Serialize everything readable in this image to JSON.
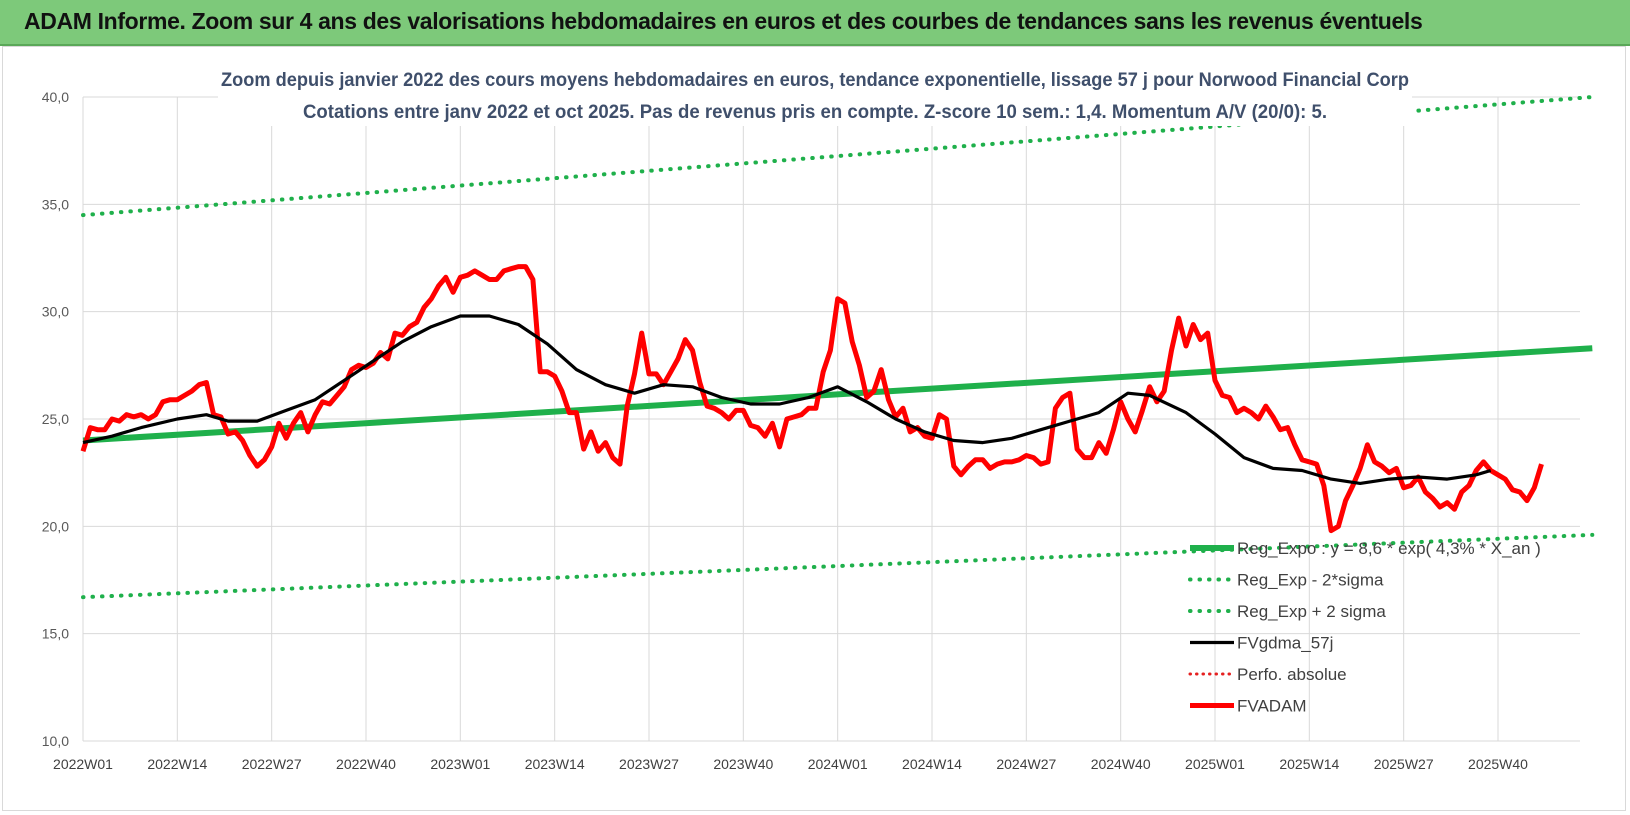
{
  "banner": {
    "title": "ADAM Informe. Zoom sur 4 ans des valorisations hebdomadaires en euros et des courbes de tendances sans les revenus éventuels"
  },
  "chart_data": {
    "type": "line",
    "title": "Zoom depuis janvier 2022 des cours moyens hebdomadaires en euros, tendance exponentielle, lissage 57 j pour Norwood Financial Corp",
    "subtitle": "Cotations entre janv 2022 et oct 2025. Pas de revenus pris en compte. Z-score 10 sem.: 1,4. Momentum A/V (20/0): 5.",
    "xlabel": "",
    "ylabel": "",
    "ylim": [
      10,
      40
    ],
    "y_ticks": [
      "10,0",
      "15,0",
      "20,0",
      "25,0",
      "30,0",
      "35,0",
      "40,0"
    ],
    "x_ticks": [
      "2022W01",
      "2022W14",
      "2022W27",
      "2022W40",
      "2023W01",
      "2023W14",
      "2023W27",
      "2023W40",
      "2024W01",
      "2024W14",
      "2024W27",
      "2024W40",
      "2025W01",
      "2025W14",
      "2025W27",
      "2025W40"
    ],
    "grid": "vertical and horizontal",
    "legend_position": "bottom-right",
    "colors": {
      "trend": "#1fb04b",
      "price": "#ff0000",
      "smooth": "#000000",
      "perf": "#e52020"
    },
    "series": [
      {
        "name": "Reg_Expo : y = 8,6 * exp( 4,3% * X_an )",
        "style": "solid-green",
        "points": [
          [
            0,
            24.0
          ],
          [
            208,
            28.3
          ]
        ]
      },
      {
        "name": "Reg_Exp - 2*sigma",
        "style": "dotted-green",
        "points": [
          [
            0,
            16.7
          ],
          [
            208,
            19.6
          ]
        ]
      },
      {
        "name": "Reg_Exp + 2 sigma",
        "style": "dotted-green",
        "points": [
          [
            0,
            34.5
          ],
          [
            208,
            40.0
          ]
        ]
      },
      {
        "name": "FVgdma_57j",
        "style": "solid-black",
        "points": [
          [
            0,
            23.9
          ],
          [
            4,
            24.2
          ],
          [
            8,
            24.6
          ],
          [
            13,
            25.0
          ],
          [
            17,
            25.2
          ],
          [
            20,
            24.9
          ],
          [
            24,
            24.9
          ],
          [
            28,
            25.4
          ],
          [
            32,
            25.9
          ],
          [
            36,
            26.8
          ],
          [
            40,
            27.7
          ],
          [
            44,
            28.6
          ],
          [
            48,
            29.3
          ],
          [
            52,
            29.8
          ],
          [
            56,
            29.8
          ],
          [
            60,
            29.4
          ],
          [
            64,
            28.5
          ],
          [
            68,
            27.3
          ],
          [
            72,
            26.6
          ],
          [
            76,
            26.2
          ],
          [
            80,
            26.6
          ],
          [
            84,
            26.5
          ],
          [
            88,
            26.0
          ],
          [
            92,
            25.7
          ],
          [
            96,
            25.7
          ],
          [
            100,
            26.0
          ],
          [
            104,
            26.5
          ],
          [
            108,
            25.8
          ],
          [
            112,
            25.0
          ],
          [
            116,
            24.4
          ],
          [
            120,
            24.0
          ],
          [
            124,
            23.9
          ],
          [
            128,
            24.1
          ],
          [
            132,
            24.5
          ],
          [
            136,
            24.9
          ],
          [
            140,
            25.3
          ],
          [
            144,
            26.2
          ],
          [
            147,
            26.1
          ],
          [
            152,
            25.3
          ],
          [
            156,
            24.3
          ],
          [
            160,
            23.2
          ],
          [
            164,
            22.7
          ],
          [
            168,
            22.6
          ],
          [
            172,
            22.2
          ],
          [
            176,
            22.0
          ],
          [
            180,
            22.2
          ],
          [
            184,
            22.3
          ],
          [
            188,
            22.2
          ],
          [
            192,
            22.4
          ],
          [
            194,
            22.6
          ]
        ]
      },
      {
        "name": "Perfo. absolue",
        "style": "dotted-red",
        "points": []
      },
      {
        "name": "FVADAM",
        "style": "solid-red",
        "points": [
          [
            0,
            23.5
          ],
          [
            1,
            24.6
          ],
          [
            2,
            24.5
          ],
          [
            3,
            24.5
          ],
          [
            4,
            25.0
          ],
          [
            5,
            24.9
          ],
          [
            6,
            25.2
          ],
          [
            7,
            25.1
          ],
          [
            8,
            25.2
          ],
          [
            9,
            25.0
          ],
          [
            10,
            25.2
          ],
          [
            11,
            25.8
          ],
          [
            12,
            25.9
          ],
          [
            13,
            25.9
          ],
          [
            14,
            26.1
          ],
          [
            15,
            26.3
          ],
          [
            16,
            26.6
          ],
          [
            17,
            26.7
          ],
          [
            18,
            25.2
          ],
          [
            19,
            25.1
          ],
          [
            20,
            24.3
          ],
          [
            21,
            24.4
          ],
          [
            22,
            24.0
          ],
          [
            23,
            23.3
          ],
          [
            24,
            22.8
          ],
          [
            25,
            23.1
          ],
          [
            26,
            23.7
          ],
          [
            27,
            24.8
          ],
          [
            28,
            24.1
          ],
          [
            29,
            24.8
          ],
          [
            30,
            25.3
          ],
          [
            31,
            24.4
          ],
          [
            32,
            25.2
          ],
          [
            33,
            25.8
          ],
          [
            34,
            25.7
          ],
          [
            35,
            26.1
          ],
          [
            36,
            26.5
          ],
          [
            37,
            27.3
          ],
          [
            38,
            27.5
          ],
          [
            39,
            27.4
          ],
          [
            40,
            27.6
          ],
          [
            41,
            28.1
          ],
          [
            42,
            27.8
          ],
          [
            43,
            29.0
          ],
          [
            44,
            28.9
          ],
          [
            45,
            29.3
          ],
          [
            46,
            29.5
          ],
          [
            47,
            30.2
          ],
          [
            48,
            30.6
          ],
          [
            49,
            31.2
          ],
          [
            50,
            31.6
          ],
          [
            51,
            30.9
          ],
          [
            52,
            31.6
          ],
          [
            53,
            31.7
          ],
          [
            54,
            31.9
          ],
          [
            55,
            31.7
          ],
          [
            56,
            31.5
          ],
          [
            57,
            31.5
          ],
          [
            58,
            31.9
          ],
          [
            59,
            32.0
          ],
          [
            60,
            32.1
          ],
          [
            61,
            32.1
          ],
          [
            62,
            31.5
          ],
          [
            63,
            27.2
          ],
          [
            64,
            27.2
          ],
          [
            65,
            27.0
          ],
          [
            66,
            26.3
          ],
          [
            67,
            25.3
          ],
          [
            68,
            25.3
          ],
          [
            69,
            23.6
          ],
          [
            70,
            24.4
          ],
          [
            71,
            23.5
          ],
          [
            72,
            23.9
          ],
          [
            73,
            23.2
          ],
          [
            74,
            22.9
          ],
          [
            75,
            25.6
          ],
          [
            76,
            27.1
          ],
          [
            77,
            29.0
          ],
          [
            78,
            27.1
          ],
          [
            79,
            27.1
          ],
          [
            80,
            26.6
          ],
          [
            81,
            27.2
          ],
          [
            82,
            27.8
          ],
          [
            83,
            28.7
          ],
          [
            84,
            28.2
          ],
          [
            85,
            26.7
          ],
          [
            86,
            25.6
          ],
          [
            87,
            25.5
          ],
          [
            88,
            25.3
          ],
          [
            89,
            25.0
          ],
          [
            90,
            25.4
          ],
          [
            91,
            25.4
          ],
          [
            92,
            24.7
          ],
          [
            93,
            24.6
          ],
          [
            94,
            24.2
          ],
          [
            95,
            24.8
          ],
          [
            96,
            23.7
          ],
          [
            97,
            25.0
          ],
          [
            98,
            25.1
          ],
          [
            99,
            25.2
          ],
          [
            100,
            25.5
          ],
          [
            101,
            25.5
          ],
          [
            102,
            27.2
          ],
          [
            103,
            28.2
          ],
          [
            104,
            30.6
          ],
          [
            105,
            30.4
          ],
          [
            106,
            28.6
          ],
          [
            107,
            27.5
          ],
          [
            108,
            26.0
          ],
          [
            109,
            26.3
          ],
          [
            110,
            27.3
          ],
          [
            111,
            25.9
          ],
          [
            112,
            25.1
          ],
          [
            113,
            25.5
          ],
          [
            114,
            24.4
          ],
          [
            115,
            24.6
          ],
          [
            116,
            24.2
          ],
          [
            117,
            24.1
          ],
          [
            118,
            25.2
          ],
          [
            119,
            25.0
          ],
          [
            120,
            22.8
          ],
          [
            121,
            22.4
          ],
          [
            122,
            22.8
          ],
          [
            123,
            23.1
          ],
          [
            124,
            23.1
          ],
          [
            125,
            22.7
          ],
          [
            126,
            22.9
          ],
          [
            127,
            23.0
          ],
          [
            128,
            23.0
          ],
          [
            129,
            23.1
          ],
          [
            130,
            23.3
          ],
          [
            131,
            23.2
          ],
          [
            132,
            22.9
          ],
          [
            133,
            23.0
          ],
          [
            134,
            25.5
          ],
          [
            135,
            26.0
          ],
          [
            136,
            26.2
          ],
          [
            137,
            23.6
          ],
          [
            138,
            23.2
          ],
          [
            139,
            23.2
          ],
          [
            140,
            23.9
          ],
          [
            141,
            23.4
          ],
          [
            142,
            24.5
          ],
          [
            143,
            25.8
          ],
          [
            144,
            25.0
          ],
          [
            145,
            24.4
          ],
          [
            146,
            25.4
          ],
          [
            147,
            26.5
          ],
          [
            148,
            25.8
          ],
          [
            149,
            26.3
          ],
          [
            150,
            28.2
          ],
          [
            151,
            29.7
          ],
          [
            152,
            28.4
          ],
          [
            153,
            29.4
          ],
          [
            154,
            28.7
          ],
          [
            155,
            29.0
          ],
          [
            156,
            26.8
          ],
          [
            157,
            26.1
          ],
          [
            158,
            26.0
          ],
          [
            159,
            25.3
          ],
          [
            160,
            25.5
          ],
          [
            161,
            25.3
          ],
          [
            162,
            25.0
          ],
          [
            163,
            25.6
          ],
          [
            164,
            25.1
          ],
          [
            165,
            24.5
          ],
          [
            166,
            24.6
          ],
          [
            167,
            23.8
          ],
          [
            168,
            23.1
          ],
          [
            169,
            23.0
          ],
          [
            170,
            22.9
          ],
          [
            171,
            21.9
          ],
          [
            172,
            19.8
          ],
          [
            173,
            20.0
          ],
          [
            174,
            21.2
          ],
          [
            175,
            21.9
          ],
          [
            176,
            22.7
          ],
          [
            177,
            23.8
          ],
          [
            178,
            23.0
          ],
          [
            179,
            22.8
          ],
          [
            180,
            22.5
          ],
          [
            181,
            22.7
          ],
          [
            182,
            21.8
          ],
          [
            183,
            21.9
          ],
          [
            184,
            22.3
          ],
          [
            185,
            21.6
          ],
          [
            186,
            21.3
          ],
          [
            187,
            20.9
          ],
          [
            188,
            21.1
          ],
          [
            189,
            20.8
          ],
          [
            190,
            21.6
          ],
          [
            191,
            21.9
          ],
          [
            192,
            22.6
          ],
          [
            193,
            23.0
          ],
          [
            194,
            22.6
          ],
          [
            195,
            22.4
          ],
          [
            196,
            22.2
          ],
          [
            197,
            21.7
          ],
          [
            198,
            21.6
          ],
          [
            199,
            21.2
          ],
          [
            200,
            21.8
          ],
          [
            201,
            22.9
          ]
        ]
      }
    ]
  }
}
